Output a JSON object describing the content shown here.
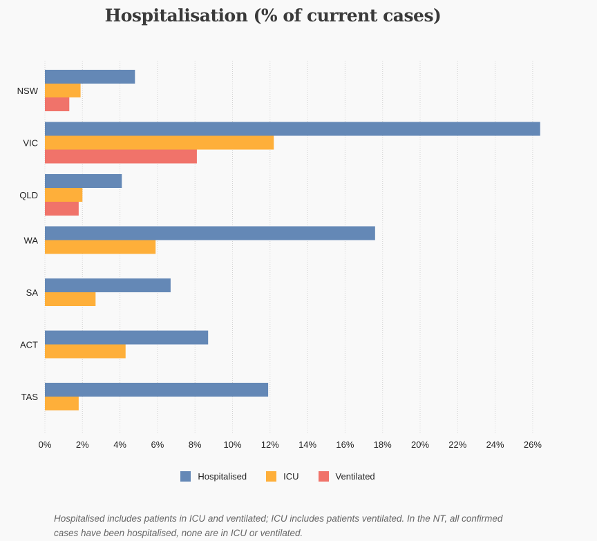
{
  "chart_data": {
    "type": "bar",
    "orientation": "horizontal",
    "title": "Hospitalisation (% of current cases)",
    "categories": [
      "NSW",
      "VIC",
      "QLD",
      "WA",
      "SA",
      "ACT",
      "TAS"
    ],
    "series": [
      {
        "name": "Hospitalised",
        "color": "#6488b6",
        "values": [
          4.8,
          26.4,
          4.1,
          17.6,
          6.7,
          8.7,
          11.9
        ]
      },
      {
        "name": "ICU",
        "color": "#feaf3a",
        "values": [
          1.9,
          12.2,
          2.0,
          5.9,
          2.7,
          4.3,
          1.8
        ]
      },
      {
        "name": "Ventilated",
        "color": "#f0736a",
        "values": [
          1.3,
          8.1,
          1.8,
          null,
          null,
          null,
          null
        ]
      }
    ],
    "xlim": [
      0,
      26.5
    ],
    "xticks": [
      0,
      2,
      4,
      6,
      8,
      10,
      12,
      14,
      16,
      18,
      20,
      22,
      24,
      26
    ],
    "tick_format": "%",
    "grid": true,
    "legend_position": "bottom-center"
  },
  "footnote": "Hospitalised includes patients in ICU and ventilated; ICU includes patients ventilated. In the NT, all confirmed cases have been hospitalised, none are in ICU or ventilated."
}
